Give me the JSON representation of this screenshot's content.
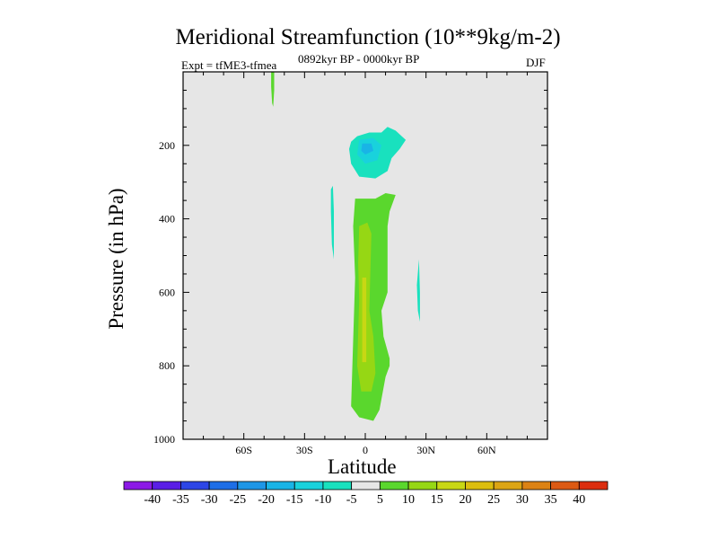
{
  "chart_data": {
    "type": "contour",
    "title": "Meridional Streamfunction (10**9kg/m-2)",
    "experiment": "Expt = tfME3-tfmea",
    "period": "0892kyr BP - 0000kyr BP",
    "season": "DJF",
    "xlabel": "Latitude",
    "ylabel": "Pressure (in hPa)",
    "xlim": [
      -90,
      90
    ],
    "ylim": [
      1000,
      0
    ],
    "x_ticks": [
      {
        "value": -60,
        "label": "60S"
      },
      {
        "value": -30,
        "label": "30S"
      },
      {
        "value": 0,
        "label": "0"
      },
      {
        "value": 30,
        "label": "30N"
      },
      {
        "value": 60,
        "label": "60N"
      }
    ],
    "y_ticks": [
      {
        "value": 200,
        "label": "200"
      },
      {
        "value": 400,
        "label": "400"
      },
      {
        "value": 600,
        "label": "600"
      },
      {
        "value": 800,
        "label": "800"
      },
      {
        "value": 1000,
        "label": "1000"
      }
    ],
    "background_color": "#e6e6e6",
    "colorbar": {
      "levels": [
        "-40",
        "-35",
        "-30",
        "-25",
        "-20",
        "-15",
        "-10",
        "-5",
        "5",
        "10",
        "15",
        "20",
        "25",
        "30",
        "35",
        "40"
      ],
      "colors": [
        "#8c19e6",
        "#5a1ee6",
        "#2d46e6",
        "#1e6ee6",
        "#1e96e6",
        "#19b4e6",
        "#19d2dc",
        "#19e1be",
        "#e6e6e6",
        "#5ad72d",
        "#96d714",
        "#c8d714",
        "#dcbe0f",
        "#dca514",
        "#dc8214",
        "#dc5a14",
        "#dc2d0f"
      ]
    },
    "regions": [
      {
        "name": "southern-positive-streak",
        "value_range": "5 to 10",
        "color": "#5ad72d",
        "points": [
          [
            -46.5,
            0
          ],
          [
            -45,
            0
          ],
          [
            -45,
            50
          ],
          [
            -45.5,
            95
          ],
          [
            -46,
            85
          ],
          [
            -46.5,
            40
          ]
        ]
      },
      {
        "name": "upper-negative-cell",
        "value_range": "-10 to -5",
        "color": "#19e1be",
        "points": [
          [
            -4,
            175
          ],
          [
            2,
            165
          ],
          [
            8,
            165
          ],
          [
            11,
            150
          ],
          [
            15,
            160
          ],
          [
            20,
            185
          ],
          [
            17,
            210
          ],
          [
            13,
            235
          ],
          [
            11,
            270
          ],
          [
            5,
            290
          ],
          [
            -3,
            285
          ],
          [
            -7,
            250
          ],
          [
            -8,
            210
          ],
          [
            -7,
            190
          ]
        ]
      },
      {
        "name": "upper-negative-core",
        "value_range": "-15 to -10",
        "color": "#19d2dc",
        "points": [
          [
            -3,
            185
          ],
          [
            4,
            180
          ],
          [
            8,
            200
          ],
          [
            6,
            240
          ],
          [
            0,
            250
          ],
          [
            -4,
            225
          ]
        ]
      },
      {
        "name": "upper-negative-center",
        "value_range": "-20 to -15",
        "color": "#19b4e6",
        "points": [
          [
            -1.5,
            195
          ],
          [
            3,
            195
          ],
          [
            4,
            215
          ],
          [
            0,
            225
          ],
          [
            -2,
            215
          ]
        ]
      },
      {
        "name": "main-positive-column",
        "value_range": "5 to 10",
        "color": "#5ad72d",
        "points": [
          [
            -5,
            345
          ],
          [
            5,
            345
          ],
          [
            10,
            330
          ],
          [
            15,
            335
          ],
          [
            12,
            380
          ],
          [
            11,
            420
          ],
          [
            11,
            600
          ],
          [
            8,
            650
          ],
          [
            9,
            720
          ],
          [
            12,
            780
          ],
          [
            12,
            800
          ],
          [
            10,
            830
          ],
          [
            7,
            920
          ],
          [
            4,
            950
          ],
          [
            -3,
            940
          ],
          [
            -7,
            910
          ],
          [
            -5,
            560
          ],
          [
            -6,
            420
          ]
        ]
      },
      {
        "name": "main-positive-core",
        "value_range": "10 to 15",
        "color": "#96d714",
        "points": [
          [
            -3,
            420
          ],
          [
            1,
            410
          ],
          [
            3,
            440
          ],
          [
            2,
            650
          ],
          [
            4,
            720
          ],
          [
            5,
            820
          ],
          [
            3,
            870
          ],
          [
            -2,
            870
          ],
          [
            -4,
            800
          ],
          [
            -3,
            620
          ],
          [
            -3.5,
            520
          ]
        ]
      },
      {
        "name": "main-positive-center",
        "value_range": "15 to 20",
        "color": "#c8d714",
        "points": [
          [
            -1.5,
            560
          ],
          [
            0.5,
            560
          ],
          [
            0.5,
            790
          ],
          [
            -1.5,
            790
          ]
        ]
      },
      {
        "name": "southern-negative-streak",
        "value_range": "-10 to -5",
        "color": "#19e1be",
        "points": [
          [
            -17,
            320
          ],
          [
            -16,
            310
          ],
          [
            -15.5,
            380
          ],
          [
            -15.5,
            510
          ],
          [
            -16.5,
            470
          ],
          [
            -17,
            380
          ]
        ]
      },
      {
        "name": "northern-negative-streak",
        "value_range": "-10 to -5",
        "color": "#19e1be",
        "points": [
          [
            26.5,
            510
          ],
          [
            27,
            600
          ],
          [
            27,
            680
          ],
          [
            26,
            650
          ],
          [
            25.5,
            580
          ]
        ]
      }
    ]
  }
}
